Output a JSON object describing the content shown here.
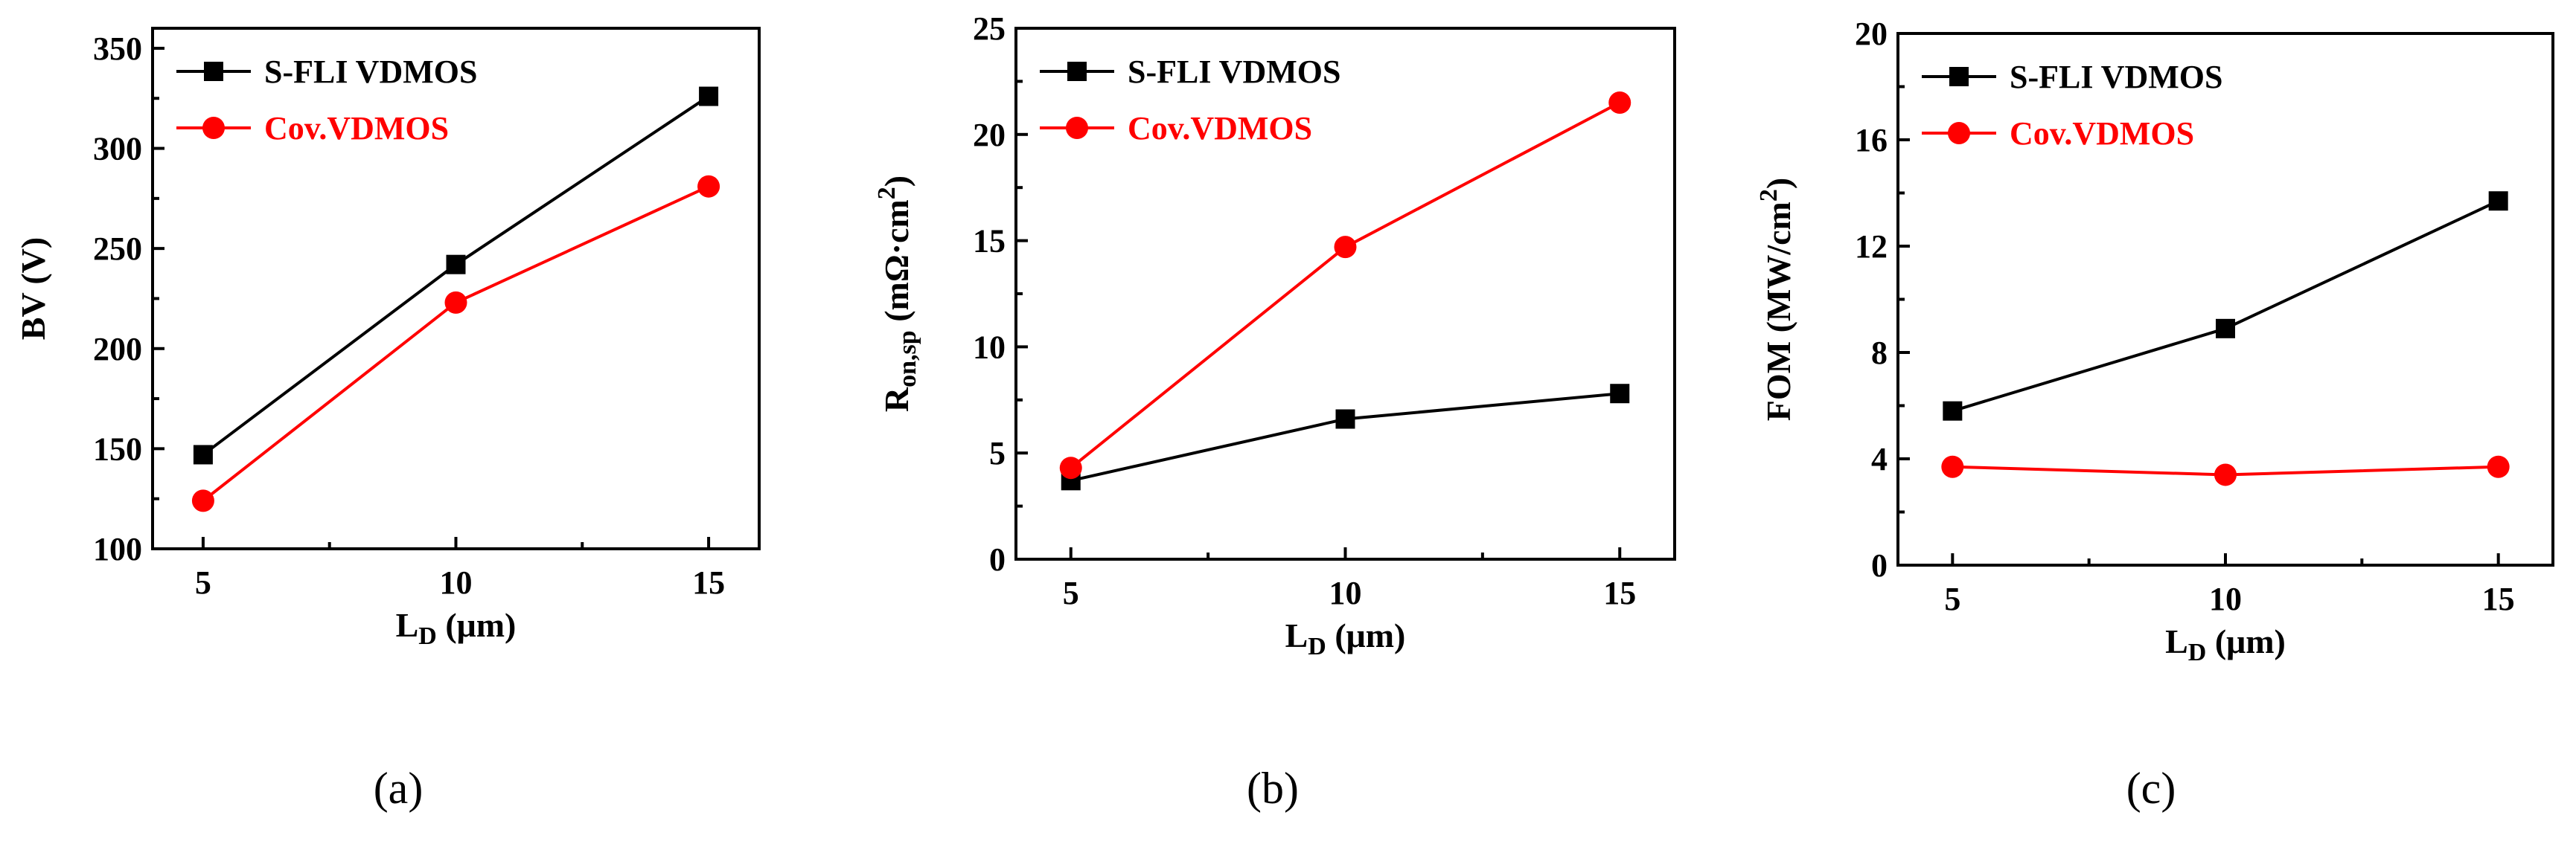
{
  "colors": {
    "s_fli": "#000000",
    "cov": "#ff0000"
  },
  "chart_data": [
    {
      "type": "line",
      "panel_label": "(a)",
      "xlabel": {
        "main": "L",
        "sub": "D",
        "unit": " (μm)"
      },
      "ylabel": {
        "text": "BV (V)"
      },
      "xlim": [
        4,
        16
      ],
      "xticks": [
        5,
        10,
        15
      ],
      "xtick_labels": [
        "5",
        "10",
        "15"
      ],
      "ylim": [
        100,
        360
      ],
      "yticks": [
        100,
        150,
        200,
        250,
        300,
        350
      ],
      "ytick_labels": [
        "100",
        "150",
        "200",
        "250",
        "300",
        "350"
      ],
      "x": [
        5,
        10,
        15
      ],
      "series": [
        {
          "name": "S-FLI VDMOS",
          "marker": "square",
          "color": "#000000",
          "values": [
            147,
            242,
            326
          ]
        },
        {
          "name": "Cov.VDMOS",
          "marker": "circle",
          "color": "#ff0000",
          "values": [
            124,
            223,
            281
          ]
        }
      ],
      "legend": "top-left"
    },
    {
      "type": "line",
      "panel_label": "(b)",
      "xlabel": {
        "main": "L",
        "sub": "D",
        "unit": " (μm)"
      },
      "ylabel": {
        "main": "R",
        "sub": "on,sp",
        "unit": " (mΩ·cm",
        "sup": "2",
        "close": ")"
      },
      "xlim": [
        4,
        16
      ],
      "xticks": [
        5,
        10,
        15
      ],
      "xtick_labels": [
        "5",
        "10",
        "15"
      ],
      "ylim": [
        0,
        25
      ],
      "yticks": [
        0,
        5,
        10,
        15,
        20,
        25
      ],
      "ytick_labels": [
        "0",
        "5",
        "10",
        "15",
        "20",
        "25"
      ],
      "x": [
        5,
        10,
        15
      ],
      "series": [
        {
          "name": "S-FLI VDMOS",
          "marker": "square",
          "color": "#000000",
          "values": [
            3.7,
            6.6,
            7.8
          ]
        },
        {
          "name": "Cov.VDMOS",
          "marker": "circle",
          "color": "#ff0000",
          "values": [
            4.3,
            14.7,
            21.5
          ]
        }
      ],
      "legend": "top-left"
    },
    {
      "type": "line",
      "panel_label": "(c)",
      "xlabel": {
        "main": "L",
        "sub": "D",
        "unit": " (μm)"
      },
      "ylabel": {
        "main": "FOM (MW/cm",
        "sup": "2",
        "close": ")"
      },
      "xlim": [
        4,
        16
      ],
      "xticks": [
        5,
        10,
        15
      ],
      "xtick_labels": [
        "5",
        "10",
        "15"
      ],
      "ylim": [
        0,
        20
      ],
      "yticks": [
        0,
        4,
        8,
        12,
        16,
        20
      ],
      "ytick_labels": [
        "0",
        "4",
        "8",
        "12",
        "16",
        "20"
      ],
      "x": [
        5,
        10,
        15
      ],
      "series": [
        {
          "name": "S-FLI VDMOS",
          "marker": "square",
          "color": "#000000",
          "values": [
            5.8,
            8.9,
            13.7
          ]
        },
        {
          "name": "Cov.VDMOS",
          "marker": "circle",
          "color": "#ff0000",
          "values": [
            3.7,
            3.4,
            3.7
          ]
        }
      ],
      "legend": "top-left"
    }
  ]
}
